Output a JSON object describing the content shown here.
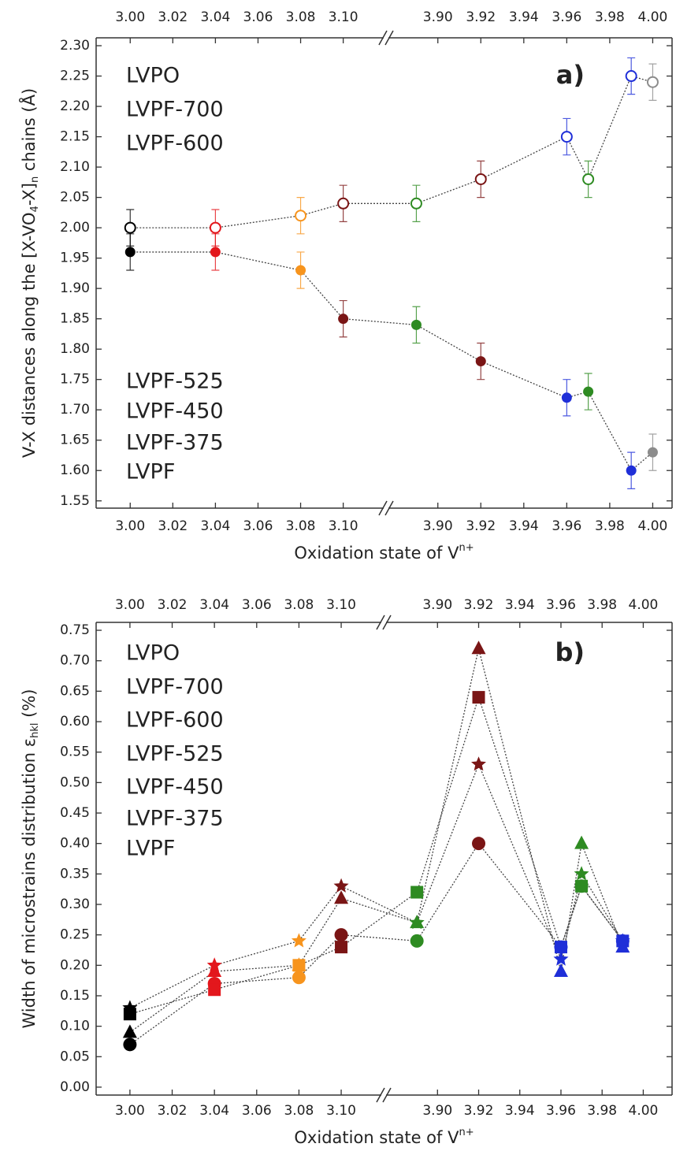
{
  "chart_data": [
    {
      "type": "scatter",
      "panel_label": "a)",
      "xlabel": [
        "Oxidation state of V",
        "n+"
      ],
      "ylabel": [
        "V-X distances along the [X-VO",
        "4",
        "-X]",
        "n",
        " chains (Å)"
      ],
      "xlim_segments": [
        [
          2.984,
          3.119
        ],
        [
          3.877,
          4.009
        ]
      ],
      "xticks": [
        {
          "value": 3.0,
          "label": "3.00"
        },
        3.02,
        3.04,
        3.06,
        3.08,
        {
          "value": 3.1,
          "label": "3.10"
        },
        {
          "value": 3.9,
          "label": "3.90"
        },
        3.92,
        3.94,
        3.96,
        3.98,
        {
          "value": 4.0,
          "label": "4.00"
        }
      ],
      "ylim": [
        1.538,
        2.313
      ],
      "yticks": [
        1.55,
        {
          "value": 1.6,
          "label": "1.60"
        },
        1.65,
        {
          "value": 1.7,
          "label": "1.70"
        },
        1.75,
        {
          "value": 1.8,
          "label": "1.80"
        },
        1.85,
        {
          "value": 1.9,
          "label": "1.90"
        },
        1.95,
        {
          "value": 2.0,
          "label": "2.00"
        },
        2.05,
        {
          "value": 2.1,
          "label": "2.10"
        },
        2.15,
        {
          "value": 2.2,
          "label": "2.20"
        },
        2.25,
        {
          "value": 2.3,
          "label": "2.30"
        }
      ],
      "series": [
        {
          "name": "LVPF",
          "color": "#000000",
          "x": [
            3.0,
            3.0
          ],
          "values": [
            2.0,
            1.96
          ],
          "errors": [
            0.03,
            0.03
          ],
          "markers": [
            "open",
            "filled"
          ]
        },
        {
          "name": "LVPF-375",
          "color": "#e3171c",
          "x": [
            3.04,
            3.04
          ],
          "values": [
            2.0,
            1.96
          ],
          "errors": [
            0.03,
            0.03
          ],
          "markers": [
            "open",
            "filled"
          ]
        },
        {
          "name": "LVPF-450",
          "color": "#f7941d",
          "x": [
            3.08,
            3.08
          ],
          "values": [
            2.02,
            1.93
          ],
          "errors": [
            0.03,
            0.03
          ],
          "markers": [
            "open",
            "filled"
          ]
        },
        {
          "name": "LVPF-525",
          "color": "#7a1515",
          "x": [
            3.1,
            3.1,
            3.92,
            3.92
          ],
          "values": [
            2.04,
            1.85,
            2.08,
            1.78
          ],
          "errors": [
            0.03,
            0.03,
            0.03,
            0.03
          ],
          "markers": [
            "open",
            "filled",
            "open",
            "filled"
          ]
        },
        {
          "name": "LVPF-600",
          "color": "#2e8b22",
          "x": [
            3.89,
            3.89,
            3.97,
            3.97
          ],
          "values": [
            2.04,
            1.84,
            2.08,
            1.73
          ],
          "errors": [
            0.03,
            0.03,
            0.03,
            0.03
          ],
          "markers": [
            "open",
            "filled",
            "open",
            "filled"
          ]
        },
        {
          "name": "LVPF-700",
          "color": "#1f2fd8",
          "x": [
            3.96,
            3.96,
            3.99,
            3.99
          ],
          "values": [
            2.15,
            1.72,
            2.25,
            1.6
          ],
          "errors": [
            0.03,
            0.03,
            0.03,
            0.03
          ],
          "markers": [
            "open",
            "filled",
            "open",
            "filled"
          ]
        },
        {
          "name": "LVPO",
          "color": "#8c8c8c",
          "x": [
            4.0,
            4.0
          ],
          "values": [
            2.24,
            1.63
          ],
          "errors": [
            0.03,
            0.03
          ],
          "markers": [
            "open",
            "filled"
          ]
        }
      ]
    },
    {
      "type": "scatter",
      "panel_label": "b)",
      "xlabel": [
        "Oxidation state of V",
        "n+"
      ],
      "ylabel": [
        "Width of microstrains distribution ε",
        "hkl",
        " (%)"
      ],
      "xlim_segments": [
        [
          2.984,
          3.119
        ],
        [
          3.875,
          4.014
        ]
      ],
      "xticks": [
        {
          "value": 3.0,
          "label": "3.00"
        },
        3.02,
        3.04,
        3.06,
        3.08,
        {
          "value": 3.1,
          "label": "3.10"
        },
        {
          "value": 3.9,
          "label": "3.90"
        },
        3.92,
        3.94,
        3.96,
        3.98,
        {
          "value": 4.0,
          "label": "4.00"
        }
      ],
      "ylim": [
        -0.013,
        0.763
      ],
      "yticks": [
        {
          "value": 0,
          "label": "0.00"
        },
        0.05,
        {
          "value": 0.1,
          "label": "0.10"
        },
        0.15,
        {
          "value": 0.2,
          "label": "0.20"
        },
        0.25,
        {
          "value": 0.3,
          "label": "0.30"
        },
        0.35,
        {
          "value": 0.4,
          "label": "0.40"
        },
        0.45,
        {
          "value": 0.5,
          "label": "0.50"
        },
        0.55,
        {
          "value": 0.6,
          "label": "0.60"
        },
        0.65,
        {
          "value": 0.7,
          "label": "0.70"
        },
        0.75
      ],
      "series": [
        {
          "name": "LVPF",
          "color": "#000000",
          "x": [
            3.0,
            3.0,
            3.0,
            3.0
          ],
          "values": [
            0.07,
            0.12,
            0.09,
            0.13
          ],
          "markers": [
            "circle",
            "square",
            "triangle",
            "star"
          ]
        },
        {
          "name": "LVPF-375",
          "color": "#e3171c",
          "x": [
            3.04,
            3.04,
            3.04,
            3.04
          ],
          "values": [
            0.17,
            0.16,
            0.19,
            0.2
          ],
          "markers": [
            "circle",
            "square",
            "triangle",
            "star"
          ]
        },
        {
          "name": "LVPF-450",
          "color": "#f7941d",
          "x": [
            3.08,
            3.08,
            3.08,
            3.08
          ],
          "values": [
            0.18,
            0.2,
            0.2,
            0.24
          ],
          "markers": [
            "circle",
            "square",
            "triangle",
            "star"
          ]
        },
        {
          "name": "LVPF-525",
          "color": "#7a1515",
          "x": [
            3.1,
            3.1,
            3.1,
            3.1,
            3.92,
            3.92,
            3.92,
            3.92
          ],
          "values": [
            0.25,
            0.23,
            0.31,
            0.33,
            0.4,
            0.64,
            0.72,
            0.53
          ],
          "markers": [
            "circle",
            "square",
            "triangle",
            "star",
            "circle",
            "square",
            "triangle",
            "star"
          ]
        },
        {
          "name": "LVPF-600",
          "color": "#2e8b22",
          "x": [
            3.89,
            3.89,
            3.89,
            3.89,
            3.97,
            3.97,
            3.97,
            3.97
          ],
          "values": [
            0.24,
            0.32,
            0.27,
            0.27,
            0.33,
            0.33,
            0.4,
            0.35
          ],
          "markers": [
            "circle",
            "square",
            "triangle",
            "star",
            "circle",
            "square",
            "triangle",
            "star"
          ]
        },
        {
          "name": "LVPF-700",
          "color": "#1f2fd8",
          "x": [
            3.96,
            3.96,
            3.96,
            3.96,
            3.99,
            3.99,
            3.99,
            3.99
          ],
          "values": [
            0.23,
            0.23,
            0.19,
            0.21,
            0.24,
            0.24,
            0.23,
            0.24
          ],
          "markers": [
            "circle",
            "square",
            "triangle",
            "star",
            "circle",
            "square",
            "triangle",
            "star"
          ]
        },
        {
          "name": "LVPO",
          "color": "#8c8c8c",
          "x": [],
          "values": [],
          "markers": []
        }
      ]
    }
  ]
}
